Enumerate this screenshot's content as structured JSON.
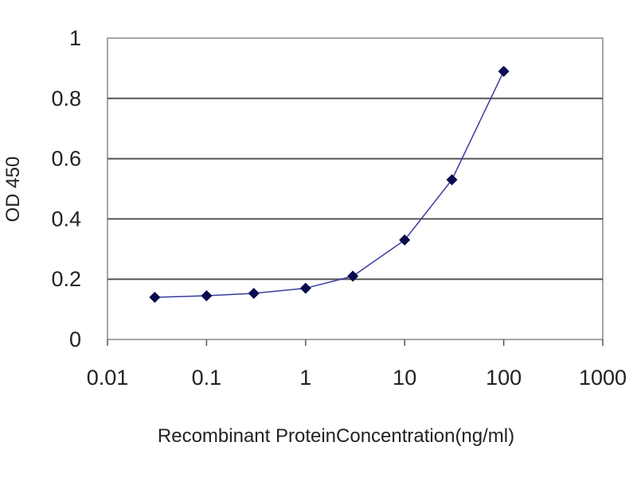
{
  "chart_data": {
    "type": "line",
    "title": "",
    "xlabel": "Recombinant ProteinConcentration(ng/ml)",
    "ylabel": "OD 450",
    "x_scale": "log",
    "xlim": [
      0.01,
      1000
    ],
    "ylim": [
      0,
      1
    ],
    "x_ticks": [
      "0.01",
      "0.1",
      "1",
      "10",
      "100",
      "1000"
    ],
    "y_ticks": [
      "0",
      "0.2",
      "0.4",
      "0.6",
      "0.8",
      "1"
    ],
    "grid": "horizontal",
    "line_color": "#3a3aa0",
    "marker_color": "#0a0a50",
    "marker": "diamond",
    "series": [
      {
        "x": [
          0.03,
          0.1,
          0.3,
          1,
          3,
          10,
          30,
          100
        ],
        "y": [
          0.14,
          0.145,
          0.153,
          0.17,
          0.21,
          0.33,
          0.53,
          0.89
        ]
      }
    ]
  }
}
